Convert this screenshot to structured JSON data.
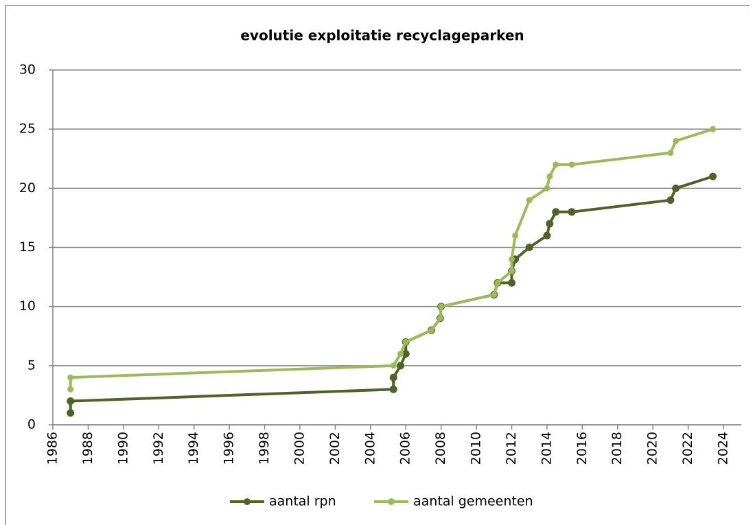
{
  "chart_data": {
    "type": "line",
    "title": "evolutie exploitatie recyclageparken",
    "series": [
      {
        "name": "aantal rpn",
        "color": "#4f6228",
        "x": [
          1987,
          1987,
          2005.3,
          2005.3,
          2005.7,
          2006,
          2006,
          2007.45,
          2007.95,
          2008,
          2011,
          2011.2,
          2012,
          2012,
          2012.2,
          2013,
          2014,
          2014.15,
          2014.5,
          2015.4,
          2021,
          2021.3,
          2023.4
        ],
        "values": [
          1,
          2,
          3,
          4,
          5,
          6,
          7,
          8,
          9,
          10,
          11,
          12,
          12,
          13,
          14,
          15,
          16,
          17,
          18,
          18,
          19,
          20,
          21
        ]
      },
      {
        "name": "aantal gemeenten",
        "color": "#9bbb59",
        "x": [
          1987,
          1987,
          2005.3,
          2005.7,
          2006,
          2007.45,
          2007.95,
          2008,
          2011,
          2011.2,
          2012,
          2012,
          2012.2,
          2013,
          2014,
          2014.15,
          2014.5,
          2015.4,
          2021,
          2021.3,
          2023.4
        ],
        "values": [
          3,
          4,
          5,
          6,
          7,
          8,
          9,
          10,
          11,
          12,
          13,
          14,
          16,
          19,
          20,
          21,
          22,
          22,
          23,
          24,
          25
        ]
      }
    ],
    "xlim": [
      1986,
      2024
    ],
    "xticks": [
      1986,
      1988,
      1990,
      1992,
      1994,
      1996,
      1998,
      2000,
      2002,
      2004,
      2006,
      2008,
      2010,
      2012,
      2014,
      2016,
      2018,
      2020,
      2022,
      2024
    ],
    "ylim": [
      0,
      30
    ],
    "yticks": [
      0,
      5,
      10,
      15,
      20,
      25,
      30
    ],
    "grid": true,
    "legend": "bottom"
  }
}
